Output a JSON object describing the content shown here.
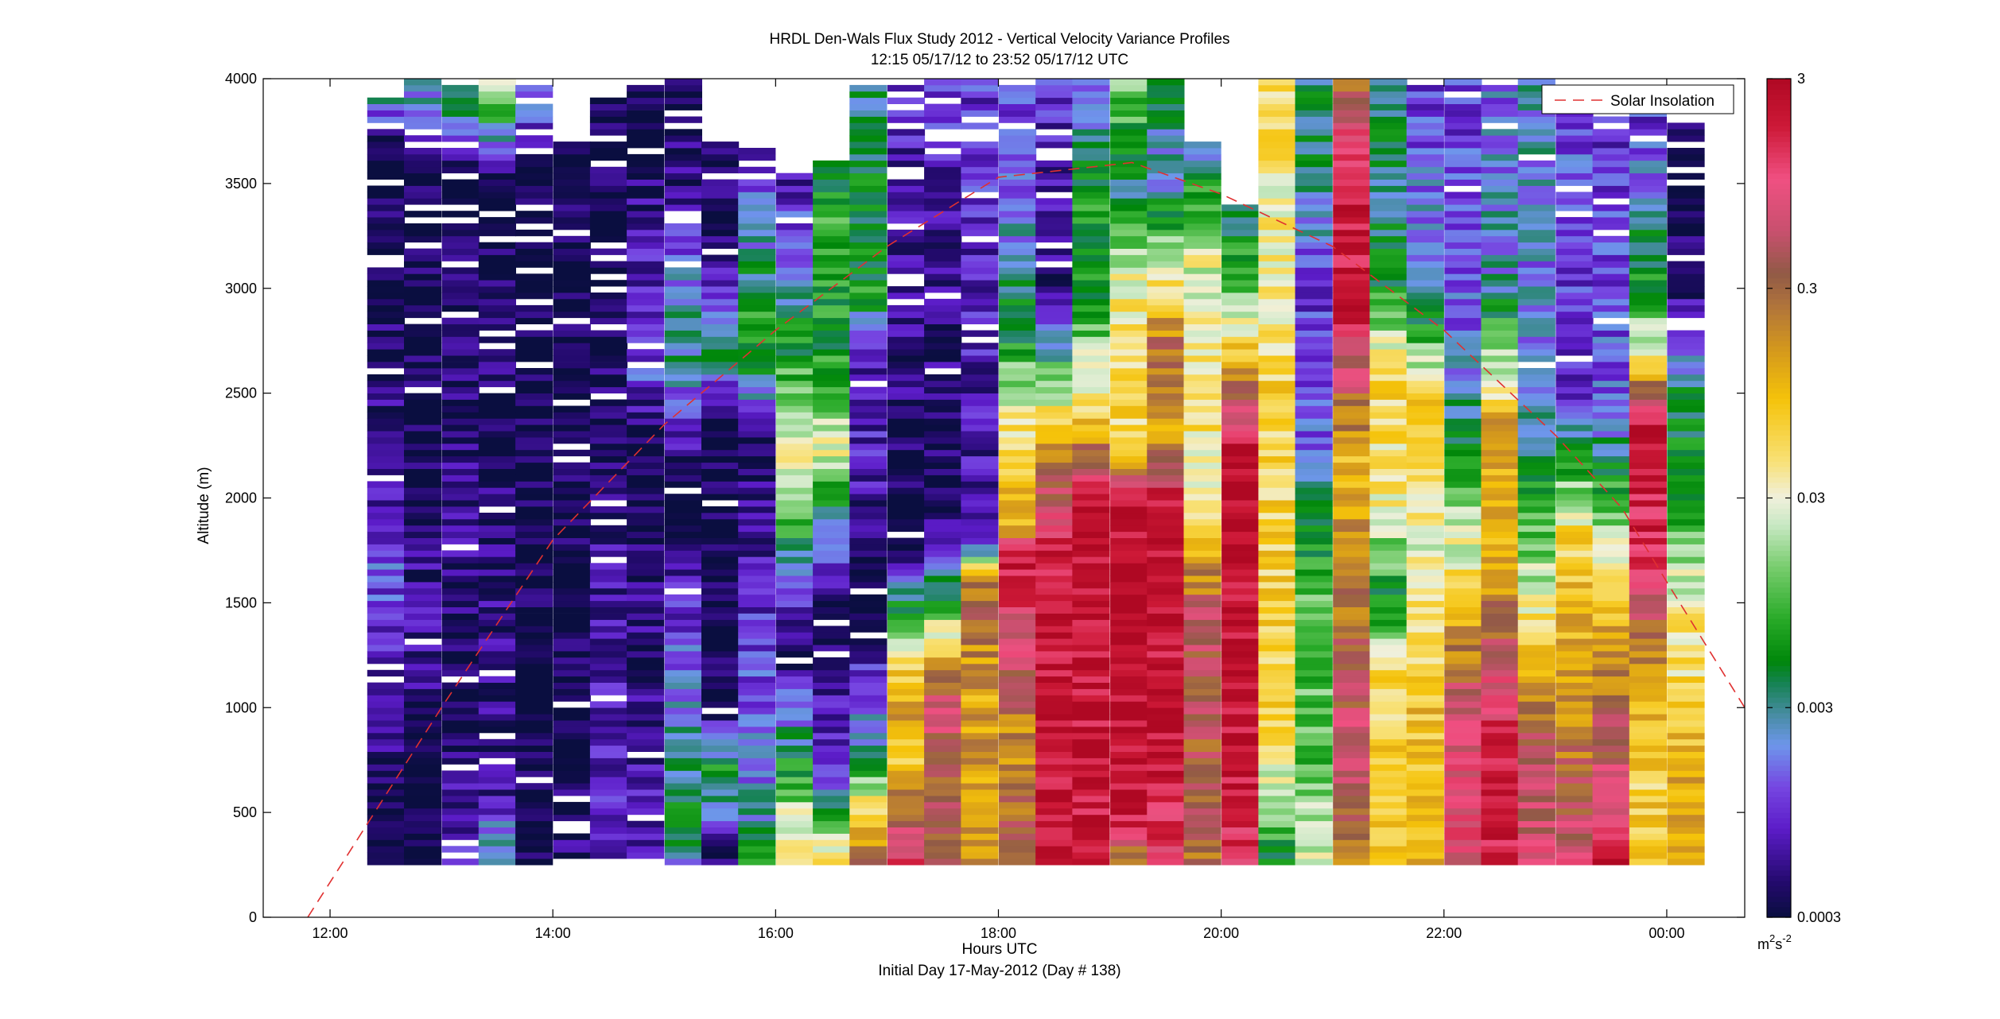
{
  "chart_data": {
    "type": "heatmap",
    "title": "HRDL Den-Wals Flux Study 2012 - Vertical Velocity Variance Profiles",
    "subtitle": "12:15 05/17/12 to 23:52 05/17/12  UTC",
    "xlabel": "Hours UTC",
    "xlabel2": "Initial Day 17-May-2012 (Day # 138)",
    "ylabel": "Altitude (m)",
    "xlim_hours": [
      11.4,
      24.7
    ],
    "ylim": [
      0,
      4000
    ],
    "x_ticks": [
      {
        "v": 12,
        "label": "12:00"
      },
      {
        "v": 14,
        "label": "14:00"
      },
      {
        "v": 16,
        "label": "16:00"
      },
      {
        "v": 18,
        "label": "18:00"
      },
      {
        "v": 20,
        "label": "20:00"
      },
      {
        "v": 22,
        "label": "22:00"
      },
      {
        "v": 24,
        "label": "00:00"
      }
    ],
    "y_ticks": [
      0,
      500,
      1000,
      1500,
      2000,
      2500,
      3000,
      3500,
      4000
    ],
    "colorbar": {
      "scale": "log",
      "range": [
        0.0003,
        3
      ],
      "ticks": [
        {
          "v": 0.0003,
          "label": "0.0003"
        },
        {
          "v": 0.003,
          "label": "0.003"
        },
        {
          "v": 0.03,
          "label": "0.03"
        },
        {
          "v": 0.3,
          "label": "0.3"
        },
        {
          "v": 3,
          "label": "3"
        }
      ],
      "unit_base": "m",
      "unit_exp1": "2",
      "unit_mid": "s",
      "unit_exp2": "-2"
    },
    "legend": {
      "label": "Solar Insolation",
      "placement": "top-right",
      "color": "#e03030",
      "style": "dashed"
    },
    "solar_insolation_alt_equiv": [
      {
        "h": 11.8,
        "alt": 0
      },
      {
        "h": 13.0,
        "alt": 1000
      },
      {
        "h": 14.0,
        "alt": 1800
      },
      {
        "h": 15.0,
        "alt": 2350
      },
      {
        "h": 16.0,
        "alt": 2800
      },
      {
        "h": 17.0,
        "alt": 3200
      },
      {
        "h": 18.0,
        "alt": 3530
      },
      {
        "h": 19.2,
        "alt": 3600
      },
      {
        "h": 20.0,
        "alt": 3450
      },
      {
        "h": 21.0,
        "alt": 3200
      },
      {
        "h": 22.0,
        "alt": 2800
      },
      {
        "h": 23.0,
        "alt": 2300
      },
      {
        "h": 23.6,
        "alt": 1950
      },
      {
        "h": 24.0,
        "alt": 1600
      },
      {
        "h": 24.7,
        "alt": 1000
      }
    ],
    "profiles": [
      {
        "h": 12.5,
        "top": 3900,
        "s": [
          [
            250,
            -3.5
          ],
          [
            600,
            -3.5
          ],
          [
            900,
            -3.3
          ],
          [
            1100,
            -3.2
          ],
          [
            1200,
            -3.2
          ],
          [
            1300,
            -3.0
          ],
          [
            1600,
            -2.9
          ],
          [
            1900,
            -3.0
          ],
          [
            2200,
            -3.3
          ],
          [
            3700,
            -3.5
          ],
          [
            3900,
            -2.5
          ]
        ]
      },
      {
        "h": 12.83,
        "top": 4000,
        "s": [
          [
            250,
            -3.5
          ],
          [
            1000,
            -3.5
          ],
          [
            1200,
            -3.2
          ],
          [
            1600,
            -3.3
          ],
          [
            2000,
            -3.4
          ],
          [
            3600,
            -3.5
          ],
          [
            4000,
            -2.4
          ]
        ]
      },
      {
        "h": 13.17,
        "top": 3950,
        "s": [
          [
            250,
            -3.0
          ],
          [
            1000,
            -3.5
          ],
          [
            1800,
            -3.3
          ],
          [
            3500,
            -3.5
          ],
          [
            3950,
            -2.2
          ]
        ]
      },
      {
        "h": 13.5,
        "top": 4000,
        "s": [
          [
            250,
            -2.3
          ],
          [
            600,
            -3.2
          ],
          [
            1200,
            -3.3
          ],
          [
            3500,
            -3.5
          ],
          [
            4000,
            -1.5
          ]
        ]
      },
      {
        "h": 13.83,
        "top": 3950,
        "s": [
          [
            250,
            -3.5
          ],
          [
            3600,
            -3.5
          ],
          [
            3950,
            -2.6
          ]
        ]
      },
      {
        "h": 14.17,
        "top": 3700,
        "s": [
          [
            250,
            -3.3
          ],
          [
            800,
            -3.5
          ],
          [
            3700,
            -3.5
          ]
        ]
      },
      {
        "h": 14.5,
        "top": 3900,
        "s": [
          [
            250,
            -3.1
          ],
          [
            1600,
            -3.2
          ],
          [
            2200,
            -3.4
          ],
          [
            3900,
            -3.5
          ]
        ]
      },
      {
        "h": 14.83,
        "top": 3950,
        "s": [
          [
            250,
            -3.1
          ],
          [
            2300,
            -3.5
          ],
          [
            2600,
            -2.9
          ],
          [
            3900,
            -3.5
          ]
        ]
      },
      {
        "h": 15.17,
        "top": 4000,
        "s": [
          [
            250,
            -2.6
          ],
          [
            500,
            -2.3
          ],
          [
            900,
            -2.6
          ],
          [
            1400,
            -3.0
          ],
          [
            2000,
            -3.5
          ],
          [
            2500,
            -2.8
          ],
          [
            2800,
            -2.4
          ],
          [
            3500,
            -3.3
          ],
          [
            4000,
            -3.5
          ]
        ]
      },
      {
        "h": 15.5,
        "top": 3700,
        "s": [
          [
            250,
            -3.5
          ],
          [
            700,
            -2.2
          ],
          [
            1000,
            -3.5
          ],
          [
            2400,
            -3.5
          ],
          [
            2700,
            -2.3
          ],
          [
            3200,
            -3.4
          ],
          [
            3700,
            -3.5
          ]
        ]
      },
      {
        "h": 15.83,
        "top": 3650,
        "s": [
          [
            250,
            -2.3
          ],
          [
            700,
            -2.8
          ],
          [
            1400,
            -3.0
          ],
          [
            2300,
            -3.5
          ],
          [
            2600,
            -2.3
          ],
          [
            2900,
            -2.2
          ],
          [
            3650,
            -3.2
          ]
        ]
      },
      {
        "h": 16.17,
        "top": 3550,
        "s": [
          [
            250,
            -1.2
          ],
          [
            400,
            -1.4
          ],
          [
            700,
            -2.2
          ],
          [
            1000,
            -2.8
          ],
          [
            1300,
            -3.5
          ],
          [
            1800,
            -2.3
          ],
          [
            2200,
            -1.4
          ],
          [
            2700,
            -2.2
          ],
          [
            3550,
            -3.2
          ]
        ]
      },
      {
        "h": 16.5,
        "top": 3600,
        "s": [
          [
            250,
            -1.2
          ],
          [
            700,
            -3.0
          ],
          [
            1500,
            -3.5
          ],
          [
            2000,
            -2.3
          ],
          [
            2200,
            -1.5
          ],
          [
            2700,
            -2.2
          ],
          [
            3300,
            -2.1
          ],
          [
            3600,
            -2.3
          ]
        ]
      },
      {
        "h": 16.83,
        "top": 3950,
        "s": [
          [
            250,
            -0.6
          ],
          [
            500,
            -1.2
          ],
          [
            800,
            -2.5
          ],
          [
            1500,
            -3.5
          ],
          [
            2200,
            -3.1
          ],
          [
            2600,
            -3.2
          ],
          [
            3000,
            -2.2
          ],
          [
            3950,
            -2.5
          ]
        ]
      },
      {
        "h": 17.17,
        "top": 3950,
        "s": [
          [
            250,
            0.2
          ],
          [
            600,
            -0.8
          ],
          [
            800,
            -1.3
          ],
          [
            1000,
            -0.8
          ],
          [
            1400,
            -1.8
          ],
          [
            1700,
            -3.5
          ],
          [
            3950,
            -3.1
          ]
        ]
      },
      {
        "h": 17.5,
        "top": 4000,
        "s": [
          [
            250,
            -0.6
          ],
          [
            1000,
            -0.2
          ],
          [
            1200,
            -0.8
          ],
          [
            1600,
            -2.5
          ],
          [
            2000,
            -3.5
          ],
          [
            4000,
            -3.0
          ]
        ]
      },
      {
        "h": 17.83,
        "top": 4000,
        "s": [
          [
            250,
            -0.7
          ],
          [
            1000,
            -0.9
          ],
          [
            1600,
            -0.5
          ],
          [
            1800,
            -3.2
          ],
          [
            4000,
            -3.0
          ]
        ]
      },
      {
        "h": 18.17,
        "top": 3950,
        "s": [
          [
            250,
            -0.3
          ],
          [
            800,
            -0.8
          ],
          [
            1700,
            0.3
          ],
          [
            1900,
            -1.0
          ],
          [
            2300,
            -1.3
          ],
          [
            2800,
            -2.3
          ],
          [
            3500,
            -2.8
          ],
          [
            3950,
            -3.0
          ]
        ]
      },
      {
        "h": 18.5,
        "top": 4000,
        "s": [
          [
            250,
            0.3
          ],
          [
            1000,
            0.4
          ],
          [
            1800,
            0.2
          ],
          [
            2300,
            -1.0
          ],
          [
            3000,
            -3.4
          ],
          [
            4000,
            -3.0
          ]
        ]
      },
      {
        "h": 18.83,
        "top": 4000,
        "s": [
          [
            250,
            0.3
          ],
          [
            2000,
            0.4
          ],
          [
            2400,
            -1.2
          ],
          [
            3000,
            -2.3
          ],
          [
            3500,
            -2.2
          ],
          [
            4000,
            -3.0
          ]
        ]
      },
      {
        "h": 19.17,
        "top": 4000,
        "s": [
          [
            250,
            -0.8
          ],
          [
            500,
            0.4
          ],
          [
            2000,
            0.4
          ],
          [
            2200,
            -1.2
          ],
          [
            3000,
            -1.4
          ],
          [
            3500,
            -2.5
          ],
          [
            4000,
            -1.8
          ]
        ]
      },
      {
        "h": 19.5,
        "top": 4000,
        "s": [
          [
            250,
            0.0
          ],
          [
            700,
            0.4
          ],
          [
            2000,
            0.3
          ],
          [
            2300,
            -1.0
          ],
          [
            2700,
            -0.5
          ],
          [
            3100,
            -1.5
          ],
          [
            3500,
            -2.7
          ],
          [
            4000,
            -2.3
          ]
        ]
      },
      {
        "h": 19.83,
        "top": 3700,
        "s": [
          [
            250,
            -0.6
          ],
          [
            1400,
            -0.3
          ],
          [
            2000,
            -1.4
          ],
          [
            2600,
            -1.3
          ],
          [
            3200,
            -1.6
          ],
          [
            3700,
            -2.7
          ]
        ]
      },
      {
        "h": 20.17,
        "top": 3400,
        "s": [
          [
            250,
            0.1
          ],
          [
            1000,
            0.4
          ],
          [
            2200,
            0.4
          ],
          [
            2400,
            -0.2
          ],
          [
            3000,
            -2.0
          ],
          [
            3400,
            -2.5
          ]
        ]
      },
      {
        "h": 20.5,
        "top": 4000,
        "s": [
          [
            250,
            -2.4
          ],
          [
            600,
            -1.7
          ],
          [
            1000,
            -1.2
          ],
          [
            2500,
            -1.2
          ],
          [
            3000,
            -1.4
          ],
          [
            3500,
            -1.4
          ],
          [
            4000,
            -1.3
          ]
        ]
      },
      {
        "h": 20.83,
        "top": 4000,
        "s": [
          [
            250,
            -1.5
          ],
          [
            800,
            -2.0
          ],
          [
            1500,
            -1.9
          ],
          [
            2200,
            -2.8
          ],
          [
            3000,
            -3.0
          ],
          [
            3500,
            -2.5
          ],
          [
            4000,
            -2.4
          ]
        ]
      },
      {
        "h": 21.17,
        "top": 4000,
        "s": [
          [
            250,
            -0.7
          ],
          [
            800,
            -0.2
          ],
          [
            1500,
            -0.6
          ],
          [
            2200,
            -1.0
          ],
          [
            2900,
            0.3
          ],
          [
            3500,
            0.3
          ],
          [
            4000,
            -0.5
          ]
        ]
      },
      {
        "h": 21.5,
        "top": 4000,
        "s": [
          [
            250,
            -1.0
          ],
          [
            1200,
            -1.3
          ],
          [
            1500,
            -2.3
          ],
          [
            2000,
            -1.4
          ],
          [
            2600,
            -1.2
          ],
          [
            3000,
            -2.2
          ],
          [
            3500,
            -2.5
          ],
          [
            4000,
            -2.4
          ]
        ]
      },
      {
        "h": 21.83,
        "top": 3950,
        "s": [
          [
            250,
            -0.9
          ],
          [
            1000,
            -1.1
          ],
          [
            1800,
            -1.5
          ],
          [
            2500,
            -1.2
          ],
          [
            2900,
            -2.5
          ],
          [
            3950,
            -3.0
          ]
        ]
      },
      {
        "h": 22.17,
        "top": 4000,
        "s": [
          [
            250,
            -0.1
          ],
          [
            1000,
            -0.2
          ],
          [
            1800,
            -1.6
          ],
          [
            2400,
            -2.5
          ],
          [
            3000,
            -2.9
          ],
          [
            4000,
            -3.0
          ]
        ]
      },
      {
        "h": 22.5,
        "top": 3950,
        "s": [
          [
            250,
            0.2
          ],
          [
            800,
            0.3
          ],
          [
            1300,
            -0.4
          ],
          [
            1800,
            -1.0
          ],
          [
            2300,
            -0.8
          ],
          [
            3000,
            -2.6
          ],
          [
            3950,
            -2.8
          ]
        ]
      },
      {
        "h": 22.83,
        "top": 4000,
        "s": [
          [
            250,
            -0.1
          ],
          [
            800,
            -0.3
          ],
          [
            1500,
            -1.5
          ],
          [
            2500,
            -2.8
          ],
          [
            3500,
            -2.7
          ],
          [
            4000,
            -2.6
          ]
        ]
      },
      {
        "h": 23.17,
        "top": 3950,
        "s": [
          [
            250,
            -0.1
          ],
          [
            800,
            -0.6
          ],
          [
            1800,
            -1.2
          ],
          [
            2500,
            -3.0
          ],
          [
            3950,
            -2.9
          ]
        ]
      },
      {
        "h": 23.5,
        "top": 3800,
        "s": [
          [
            250,
            0.3
          ],
          [
            800,
            -0.3
          ],
          [
            1500,
            -1.1
          ],
          [
            2400,
            -2.8
          ],
          [
            3800,
            -3.1
          ]
        ]
      },
      {
        "h": 23.83,
        "top": 3950,
        "s": [
          [
            250,
            -1.0
          ],
          [
            600,
            -1.2
          ],
          [
            1200,
            -0.8
          ],
          [
            1800,
            0.2
          ],
          [
            2400,
            0.3
          ],
          [
            2600,
            -1.1
          ],
          [
            3000,
            -2.2
          ],
          [
            3950,
            -3.1
          ]
        ]
      },
      {
        "h": 24.17,
        "top": 3950,
        "s": [
          [
            250,
            -0.7
          ],
          [
            1500,
            -1.5
          ],
          [
            2000,
            -2.2
          ],
          [
            2500,
            -2.4
          ],
          [
            3000,
            -3.4
          ],
          [
            3950,
            -3.5
          ]
        ]
      }
    ]
  }
}
